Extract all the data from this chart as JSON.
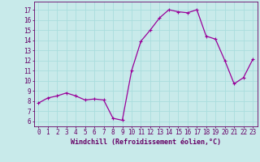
{
  "x": [
    0,
    1,
    2,
    3,
    4,
    5,
    6,
    7,
    8,
    9,
    10,
    11,
    12,
    13,
    14,
    15,
    16,
    17,
    18,
    19,
    20,
    21,
    22,
    23
  ],
  "y": [
    7.8,
    8.3,
    8.5,
    8.8,
    8.5,
    8.1,
    8.2,
    8.1,
    6.3,
    6.1,
    11.0,
    13.9,
    15.0,
    16.2,
    17.0,
    16.8,
    16.7,
    17.0,
    14.4,
    14.1,
    12.0,
    9.7,
    10.3,
    12.1
  ],
  "line_color": "#990099",
  "marker": "+",
  "markersize": 3,
  "linewidth": 0.9,
  "markeredgewidth": 0.8,
  "xlabel": "Windchill (Refroidissement éolien,°C)",
  "xlabel_fontsize": 6,
  "xlabel_color": "#660066",
  "xtick_labels": [
    "0",
    "1",
    "2",
    "3",
    "4",
    "5",
    "6",
    "7",
    "8",
    "9",
    "10",
    "11",
    "12",
    "13",
    "14",
    "15",
    "16",
    "17",
    "18",
    "19",
    "20",
    "21",
    "22",
    "23"
  ],
  "ytick_values": [
    6,
    7,
    8,
    9,
    10,
    11,
    12,
    13,
    14,
    15,
    16,
    17
  ],
  "ylim": [
    5.5,
    17.8
  ],
  "xlim": [
    -0.5,
    23.5
  ],
  "grid_color": "#aadddd",
  "bg_color": "#c8eaea",
  "tick_color": "#660066",
  "tick_fontsize": 5.5,
  "spine_color": "#660066"
}
